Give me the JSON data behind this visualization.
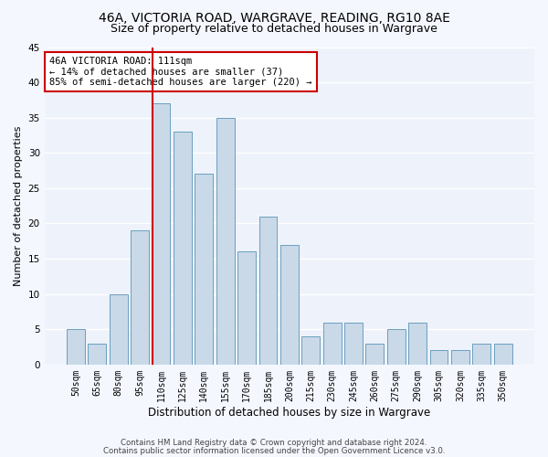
{
  "title1": "46A, VICTORIA ROAD, WARGRAVE, READING, RG10 8AE",
  "title2": "Size of property relative to detached houses in Wargrave",
  "xlabel": "Distribution of detached houses by size in Wargrave",
  "ylabel": "Number of detached properties",
  "categories": [
    "50sqm",
    "65sqm",
    "80sqm",
    "95sqm",
    "110sqm",
    "125sqm",
    "140sqm",
    "155sqm",
    "170sqm",
    "185sqm",
    "200sqm",
    "215sqm",
    "230sqm",
    "245sqm",
    "260sqm",
    "275sqm",
    "290sqm",
    "305sqm",
    "320sqm",
    "335sqm",
    "350sqm"
  ],
  "values": [
    5,
    3,
    10,
    19,
    37,
    33,
    27,
    35,
    16,
    21,
    17,
    4,
    6,
    6,
    3,
    5,
    6,
    2,
    2,
    3,
    3
  ],
  "bar_color": "#c9d9e8",
  "bar_edge_color": "#6a9fc0",
  "highlight_index": 4,
  "highlight_color": "#cc0000",
  "ylim": [
    0,
    45
  ],
  "yticks": [
    0,
    5,
    10,
    15,
    20,
    25,
    30,
    35,
    40,
    45
  ],
  "annotation_line1": "46A VICTORIA ROAD: 111sqm",
  "annotation_line2": "← 14% of detached houses are smaller (37)",
  "annotation_line3": "85% of semi-detached houses are larger (220) →",
  "annotation_box_color": "#ffffff",
  "annotation_box_edge": "#cc0000",
  "footer1": "Contains HM Land Registry data © Crown copyright and database right 2024.",
  "footer2": "Contains public sector information licensed under the Open Government Licence v3.0.",
  "bg_color": "#eef2fa",
  "grid_color": "#ffffff",
  "title1_fontsize": 10,
  "title2_fontsize": 9,
  "tick_fontsize": 7,
  "ylabel_fontsize": 8,
  "xlabel_fontsize": 8.5,
  "annotation_fontsize": 7.5
}
